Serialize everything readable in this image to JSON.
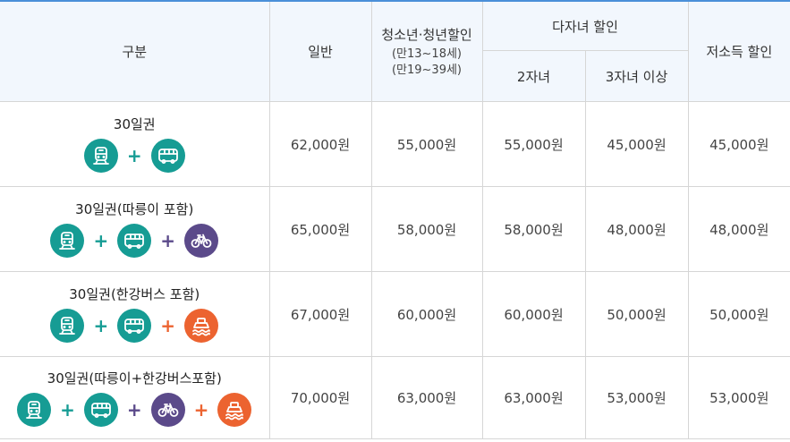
{
  "colors": {
    "teal": "#169c94",
    "purple": "#5b4a8a",
    "orange": "#ec6330",
    "header_bg": "#f2f7fd",
    "top_border": "#4a8fd9"
  },
  "header": {
    "category": "구분",
    "general": "일반",
    "youth_title": "청소년·청년할인",
    "youth_age1": "(만13~18세)",
    "youth_age2": "(만19~39세)",
    "multichild": "다자녀 할인",
    "child2": "2자녀",
    "child3": "3자녀 이상",
    "lowincome": "저소득 할인"
  },
  "rows": [
    {
      "name": "30일권",
      "icons": [
        "subway-icon",
        "bus-icon"
      ],
      "general": "62,000원",
      "youth": "55,000원",
      "child2": "55,000원",
      "child3": "45,000원",
      "lowincome": "45,000원"
    },
    {
      "name": "30일권(따릉이 포함)",
      "icons": [
        "subway-icon",
        "bus-icon",
        "bicycle-icon"
      ],
      "general": "65,000원",
      "youth": "58,000원",
      "child2": "58,000원",
      "child3": "48,000원",
      "lowincome": "48,000원"
    },
    {
      "name": "30일권(한강버스 포함)",
      "icons": [
        "subway-icon",
        "bus-icon",
        "ferry-icon"
      ],
      "general": "67,000원",
      "youth": "60,000원",
      "child2": "60,000원",
      "child3": "50,000원",
      "lowincome": "50,000원"
    },
    {
      "name": "30일권(따릉이+한강버스포함)",
      "icons": [
        "subway-icon",
        "bus-icon",
        "bicycle-icon",
        "ferry-icon"
      ],
      "general": "70,000원",
      "youth": "63,000원",
      "child2": "63,000원",
      "child3": "53,000원",
      "lowincome": "53,000원"
    }
  ]
}
